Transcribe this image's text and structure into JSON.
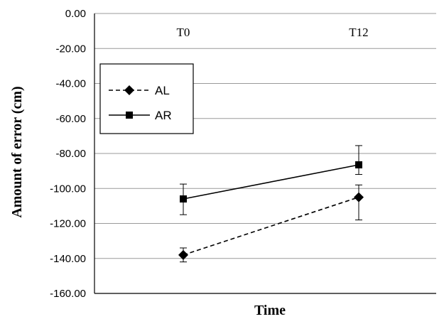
{
  "chart_data": {
    "type": "line",
    "title": "",
    "xlabel": "Time",
    "ylabel": "Amount of error (cm)",
    "categories": [
      "T0",
      "T12"
    ],
    "ylim": [
      -160,
      0
    ],
    "yticks": [
      "0.00",
      "-20.00",
      "-40.00",
      "-60.00",
      "-80.00",
      "-100.00",
      "-120.00",
      "-140.00",
      "-160.00"
    ],
    "ytick_values": [
      0,
      -20,
      -40,
      -60,
      -80,
      -100,
      -120,
      -140,
      -160
    ],
    "grid": true,
    "legend_position": "top-left",
    "series": [
      {
        "name": "AL",
        "marker": "diamond",
        "line_style": "dashed",
        "values": [
          -138,
          -105
        ],
        "error_low": [
          -142,
          -118
        ],
        "error_high": [
          -134,
          -98
        ]
      },
      {
        "name": "AR",
        "marker": "square",
        "line_style": "solid",
        "values": [
          -106,
          -86.5
        ],
        "error_low": [
          -115,
          -92
        ],
        "error_high": [
          -97.5,
          -75.5
        ]
      }
    ],
    "colors": {
      "line": "#000000",
      "grid": "#9a9a9a"
    }
  }
}
